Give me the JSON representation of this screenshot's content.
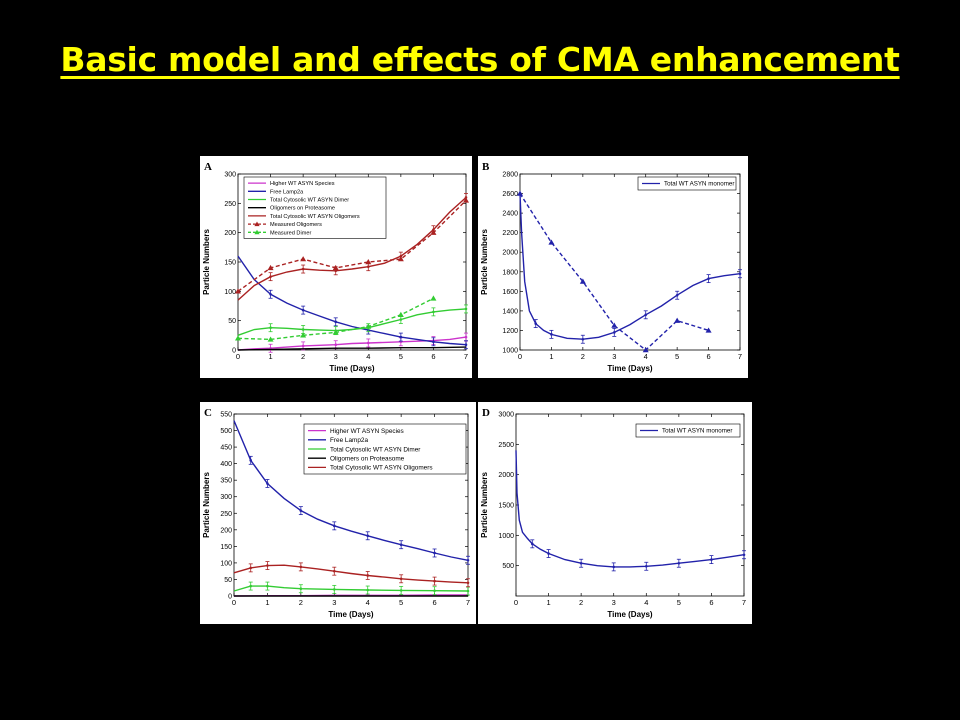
{
  "slide": {
    "title": "Basic model and effects of CMA enhancement"
  },
  "chart_data": [
    {
      "panel_letter": "A",
      "type": "line",
      "xlabel": "Time (Days)",
      "ylabel": "Particle Numbers",
      "xlim": [
        0,
        7
      ],
      "ylim": [
        0,
        300
      ],
      "xticks": [
        0,
        1,
        2,
        3,
        4,
        5,
        6,
        7
      ],
      "yticks": [
        0,
        50,
        100,
        150,
        200,
        250,
        300
      ],
      "legend_position": "top-left",
      "series": [
        {
          "name": "Higher WT ASYN Species",
          "color": "#cc33cc",
          "style": "solid",
          "marker": "none",
          "x": [
            0,
            0.5,
            1,
            1.5,
            2,
            2.5,
            3,
            3.5,
            4,
            4.5,
            5,
            5.5,
            6,
            6.5,
            7
          ],
          "y": [
            0,
            2,
            3,
            5,
            7,
            8,
            9,
            11,
            12,
            13,
            14,
            15,
            16,
            18,
            22
          ],
          "err_x": [
            1,
            2,
            3,
            4,
            5,
            6,
            7
          ],
          "err_y": [
            3,
            7,
            9,
            12,
            14,
            16,
            22
          ]
        },
        {
          "name": "Free Lamp2a",
          "color": "#2222aa",
          "style": "solid",
          "marker": "none",
          "x": [
            0,
            0.5,
            1,
            1.5,
            2,
            2.5,
            3,
            3.5,
            4,
            4.5,
            5,
            5.5,
            6,
            6.5,
            7
          ],
          "y": [
            160,
            120,
            95,
            80,
            68,
            58,
            48,
            40,
            34,
            28,
            22,
            18,
            14,
            11,
            9
          ],
          "err_x": [
            1,
            2,
            3,
            4,
            5,
            6,
            7
          ],
          "err_y": [
            95,
            68,
            48,
            34,
            22,
            14,
            9
          ]
        },
        {
          "name": "Total Cytosolic WT ASYN Dimer",
          "color": "#33cc33",
          "style": "solid",
          "marker": "none",
          "x": [
            0,
            0.5,
            1,
            1.5,
            2,
            2.5,
            3,
            3.5,
            4,
            4.5,
            5,
            5.5,
            6,
            6.5,
            7
          ],
          "y": [
            25,
            35,
            38,
            37,
            35,
            34,
            33,
            35,
            38,
            45,
            52,
            60,
            65,
            68,
            70
          ],
          "err_x": [
            1,
            2,
            3,
            4,
            5,
            6,
            7
          ],
          "err_y": [
            38,
            35,
            33,
            38,
            52,
            65,
            70
          ]
        },
        {
          "name": "Oligomers on Proteasome",
          "color": "#000000",
          "style": "solid",
          "marker": "none",
          "x": [
            0,
            1,
            2,
            3,
            4,
            5,
            6,
            7
          ],
          "y": [
            0,
            1,
            2,
            3,
            3,
            4,
            4,
            5
          ],
          "err_x": [],
          "err_y": []
        },
        {
          "name": "Total Cytosolic WT ASYN Oligomers",
          "color": "#aa2222",
          "style": "solid",
          "marker": "none",
          "x": [
            0,
            0.5,
            1,
            1.5,
            2,
            2.5,
            3,
            3.5,
            4,
            4.5,
            5,
            5.5,
            6,
            6.5,
            7
          ],
          "y": [
            85,
            110,
            125,
            133,
            138,
            136,
            135,
            138,
            142,
            148,
            160,
            180,
            205,
            235,
            260
          ],
          "err_x": [
            1,
            2,
            3,
            4,
            5,
            6,
            7
          ],
          "err_y": [
            125,
            138,
            135,
            142,
            160,
            205,
            260
          ]
        },
        {
          "name": "Measured Oligomers",
          "color": "#aa2222",
          "style": "dashed",
          "marker": "triangle",
          "x": [
            0,
            1,
            2,
            3,
            4,
            5,
            6,
            7
          ],
          "y": [
            100,
            140,
            155,
            140,
            150,
            155,
            200,
            255
          ],
          "err_x": [],
          "err_y": []
        },
        {
          "name": "Measured Dimer",
          "color": "#33cc33",
          "style": "dashed",
          "marker": "triangle",
          "x": [
            0,
            1,
            2,
            3,
            4,
            5,
            6
          ],
          "y": [
            20,
            18,
            25,
            30,
            40,
            60,
            88
          ],
          "err_x": [],
          "err_y": []
        }
      ]
    },
    {
      "panel_letter": "B",
      "type": "line",
      "xlabel": "Time (Days)",
      "ylabel": "Particle Numbers",
      "xlim": [
        0,
        7
      ],
      "ylim": [
        1000,
        2800
      ],
      "xticks": [
        0,
        1,
        2,
        3,
        4,
        5,
        6,
        7
      ],
      "yticks": [
        1000,
        1200,
        1400,
        1600,
        1800,
        2000,
        2200,
        2400,
        2600,
        2800
      ],
      "legend_position": "top-right",
      "series": [
        {
          "name": "Total WT ASYN monomer",
          "color": "#2222aa",
          "style": "solid",
          "marker": "none",
          "x": [
            0,
            0.05,
            0.15,
            0.3,
            0.5,
            0.75,
            1,
            1.5,
            2,
            2.5,
            3,
            3.5,
            4,
            4.5,
            5,
            5.5,
            6,
            6.5,
            7
          ],
          "y": [
            2600,
            2200,
            1700,
            1400,
            1270,
            1200,
            1160,
            1120,
            1110,
            1130,
            1180,
            1260,
            1360,
            1450,
            1560,
            1660,
            1730,
            1760,
            1780
          ],
          "err_x": [
            0.5,
            1,
            2,
            3,
            4,
            5,
            6,
            7
          ],
          "err_y": [
            1270,
            1160,
            1110,
            1180,
            1360,
            1560,
            1730,
            1780
          ]
        },
        {
          "name": "",
          "color": "#2222aa",
          "style": "dashed",
          "marker": "triangle",
          "x": [
            0,
            1,
            2,
            3,
            4,
            5,
            6
          ],
          "y": [
            2600,
            2100,
            1700,
            1250,
            1000,
            1300,
            1200
          ],
          "err_x": [],
          "err_y": []
        }
      ]
    },
    {
      "panel_letter": "C",
      "type": "line",
      "xlabel": "Time (Days)",
      "ylabel": "Particle Numbers",
      "xlim": [
        0,
        7
      ],
      "ylim": [
        0,
        550
      ],
      "xticks": [
        0,
        1,
        2,
        3,
        4,
        5,
        6,
        7
      ],
      "yticks": [
        0,
        50,
        100,
        150,
        200,
        250,
        300,
        350,
        400,
        450,
        500,
        550
      ],
      "legend_position": "top-right",
      "series": [
        {
          "name": "Higher WT ASYN Species",
          "color": "#cc33cc",
          "style": "solid",
          "marker": "none",
          "x": [
            0,
            1,
            2,
            3,
            4,
            5,
            6,
            7
          ],
          "y": [
            0,
            1,
            1,
            2,
            2,
            2,
            3,
            3
          ],
          "err_x": [],
          "err_y": []
        },
        {
          "name": "Free Lamp2a",
          "color": "#2222aa",
          "style": "solid",
          "marker": "none",
          "x": [
            0,
            0.5,
            1,
            1.5,
            2,
            2.5,
            3,
            3.5,
            4,
            4.5,
            5,
            5.5,
            6,
            6.5,
            7
          ],
          "y": [
            530,
            410,
            340,
            295,
            258,
            232,
            212,
            196,
            182,
            168,
            155,
            143,
            130,
            118,
            108
          ],
          "err_x": [
            0.5,
            1,
            2,
            3,
            4,
            5,
            6,
            7
          ],
          "err_y": [
            410,
            340,
            258,
            212,
            182,
            155,
            130,
            108
          ]
        },
        {
          "name": "Total Cytosolic WT ASYN Dimer",
          "color": "#33cc33",
          "style": "solid",
          "marker": "none",
          "x": [
            0,
            0.5,
            1,
            1.5,
            2,
            3,
            4,
            5,
            6,
            7
          ],
          "y": [
            15,
            30,
            30,
            25,
            22,
            20,
            18,
            17,
            16,
            15
          ],
          "err_x": [
            0.5,
            1,
            2,
            3,
            4,
            5,
            6,
            7
          ],
          "err_y": [
            30,
            30,
            22,
            20,
            18,
            17,
            16,
            15
          ]
        },
        {
          "name": "Oligomers on Proteasome",
          "color": "#000000",
          "style": "solid",
          "marker": "none",
          "x": [
            0,
            1,
            2,
            3,
            4,
            5,
            6,
            7
          ],
          "y": [
            0,
            0,
            0,
            0,
            0,
            0,
            0,
            0
          ],
          "err_x": [],
          "err_y": []
        },
        {
          "name": "Total Cytosolic WT ASYN Oligomers",
          "color": "#aa2222",
          "style": "solid",
          "marker": "none",
          "x": [
            0,
            0.5,
            1,
            1.5,
            2,
            2.5,
            3,
            3.5,
            4,
            4.5,
            5,
            5.5,
            6,
            6.5,
            7
          ],
          "y": [
            70,
            85,
            92,
            93,
            88,
            82,
            75,
            68,
            62,
            57,
            52,
            48,
            45,
            42,
            40
          ],
          "err_x": [
            0.5,
            1,
            2,
            3,
            4,
            5,
            6,
            7
          ],
          "err_y": [
            85,
            92,
            88,
            75,
            62,
            52,
            45,
            40
          ]
        }
      ]
    },
    {
      "panel_letter": "D",
      "type": "line",
      "xlabel": "Time (Days)",
      "ylabel": "Particle Numbers",
      "xlim": [
        0,
        7
      ],
      "ylim": [
        0,
        3000
      ],
      "xticks": [
        0,
        1,
        2,
        3,
        4,
        5,
        6,
        7
      ],
      "yticks": [
        500,
        1000,
        1500,
        2000,
        2500,
        3000
      ],
      "legend_position": "top-right",
      "series": [
        {
          "name": "Total WT ASYN monomer",
          "color": "#2222aa",
          "style": "solid",
          "marker": "none",
          "x": [
            0,
            0.03,
            0.1,
            0.2,
            0.35,
            0.5,
            0.75,
            1,
            1.5,
            2,
            2.5,
            3,
            3.5,
            4,
            4.5,
            5,
            5.5,
            6,
            6.5,
            7
          ],
          "y": [
            2400,
            1700,
            1250,
            1050,
            950,
            860,
            770,
            700,
            600,
            540,
            500,
            480,
            480,
            490,
            510,
            540,
            570,
            600,
            640,
            680
          ],
          "err_x": [
            0.5,
            1,
            2,
            3,
            4,
            5,
            6,
            7
          ],
          "err_y": [
            860,
            700,
            540,
            480,
            490,
            540,
            600,
            680
          ]
        }
      ]
    }
  ]
}
